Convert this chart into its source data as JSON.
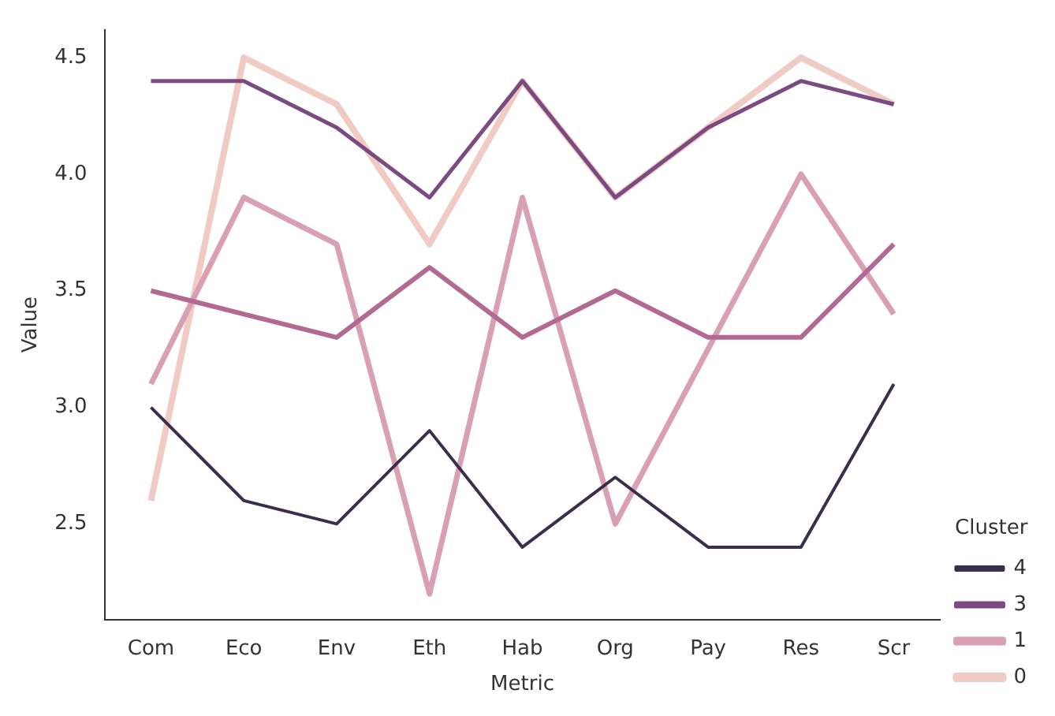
{
  "chart_data": {
    "type": "line",
    "xlabel": "Metric",
    "ylabel": "Value",
    "legend_title": "Cluster",
    "legend": "right",
    "grid": false,
    "categories": [
      "Com",
      "Eco",
      "Env",
      "Eth",
      "Hab",
      "Org",
      "Pay",
      "Res",
      "Scr"
    ],
    "ylim": [
      2.09,
      4.62
    ],
    "yticks": [
      2.5,
      {
        "value": 3,
        "label": "3.0"
      },
      3.5,
      {
        "value": 4,
        "label": "4.0"
      },
      4.5
    ],
    "series": [
      {
        "name": "0",
        "color": "#efcbc4",
        "values": [
          2.6,
          4.5,
          4.3,
          3.7,
          4.4,
          3.9,
          4.2,
          4.5,
          4.3
        ]
      },
      {
        "name": "1",
        "color": "#d9a0b2",
        "values": [
          3.1,
          3.9,
          3.7,
          2.2,
          3.9,
          2.5,
          3.25,
          4.0,
          3.4
        ]
      },
      {
        "color": "#b36a92",
        "values": [
          3.5,
          3.4,
          3.3,
          3.6,
          3.3,
          3.5,
          3.3,
          3.3,
          3.7
        ]
      },
      {
        "name": "3",
        "color": "#7b4a80",
        "values": [
          4.4,
          4.4,
          4.2,
          3.9,
          4.4,
          3.9,
          4.2,
          4.4,
          4.3
        ]
      },
      {
        "name": "4",
        "color": "#3b2d4c",
        "values": [
          3.0,
          2.6,
          2.5,
          2.9,
          2.4,
          2.7,
          2.4,
          2.4,
          3.1
        ]
      }
    ]
  }
}
